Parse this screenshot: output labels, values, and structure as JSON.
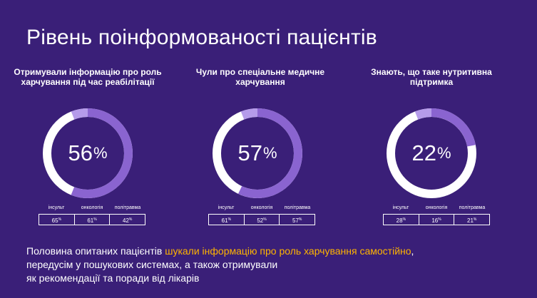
{
  "title": "Рівень поінформованості пацієнтів",
  "colors": {
    "background": "#3a1f78",
    "ring_fill": "#8a64d0",
    "ring_rest": "#ffffff",
    "ring_light": "#b59bea",
    "highlight": "#ffb400"
  },
  "stats": [
    {
      "caption": "Отримували інформацію про роль харчування під час реабілітації",
      "percent": 56,
      "percent_text": "56",
      "percent_sign": "%",
      "breakdown": [
        {
          "label": "інсульт",
          "value": "65"
        },
        {
          "label": "онкологія",
          "value": "61"
        },
        {
          "label": "політравма",
          "value": "42"
        }
      ]
    },
    {
      "caption": "Чули про спеціальне медичне харчування",
      "percent": 57,
      "percent_text": "57",
      "percent_sign": "%",
      "breakdown": [
        {
          "label": "інсульт",
          "value": "61"
        },
        {
          "label": "онкологія",
          "value": "52"
        },
        {
          "label": "політравма",
          "value": "57"
        }
      ]
    },
    {
      "caption": "Знають, що таке нутритивна підтримка",
      "percent": 22,
      "percent_text": "22",
      "percent_sign": "%",
      "breakdown": [
        {
          "label": "інсульт",
          "value": "28"
        },
        {
          "label": "онкологія",
          "value": "16"
        },
        {
          "label": "політравма",
          "value": "21"
        }
      ]
    }
  ],
  "value_suffix": "%",
  "summary": {
    "line1_start": "Половина опитаних пацієнтів ",
    "line1_highlight": "шукали інформацію про роль харчування самостійно",
    "line1_end": ",",
    "line2": "передусім у пошукових системах, а також отримували",
    "line3": "як рекомендації та поради від лікарів"
  }
}
